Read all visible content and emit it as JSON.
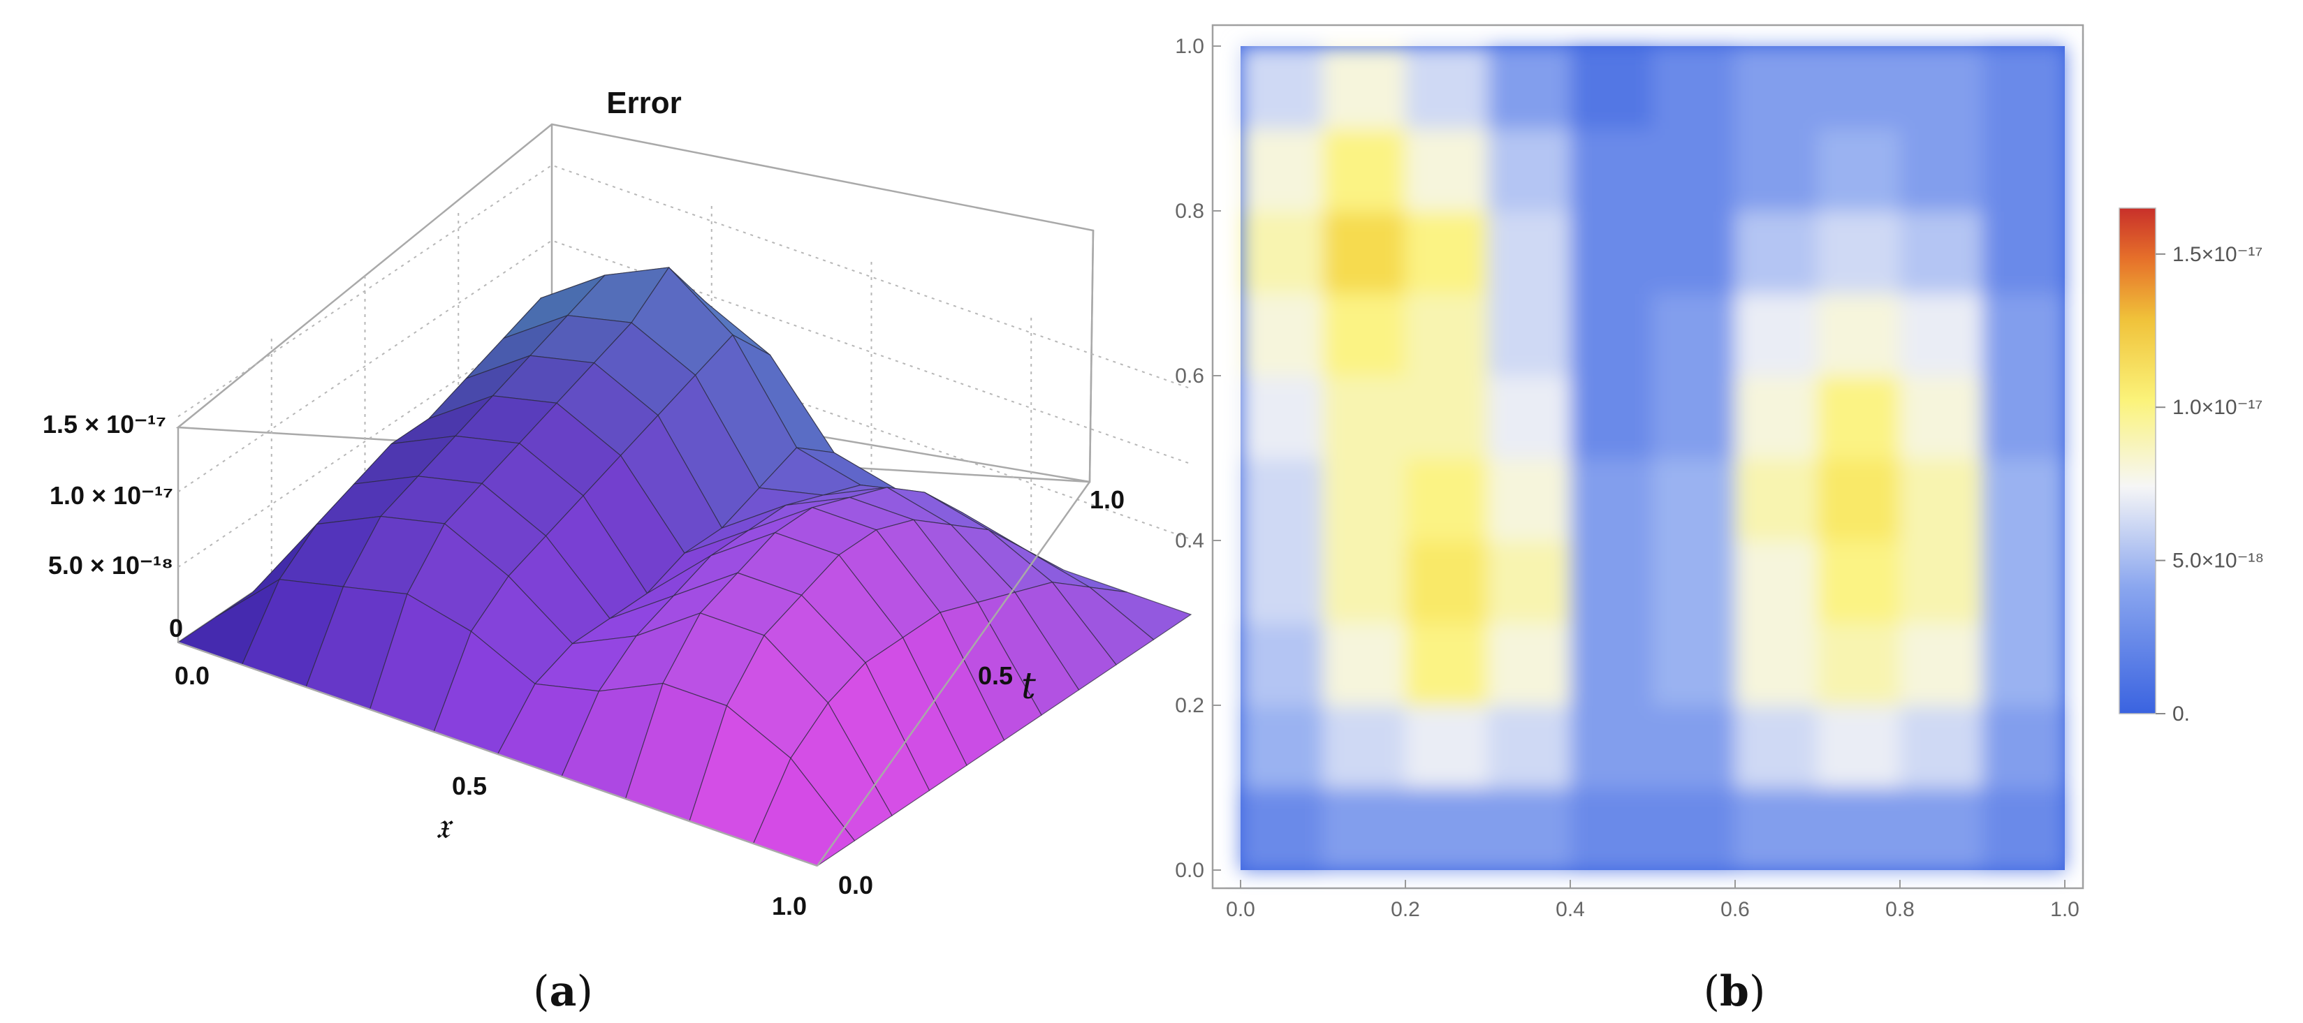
{
  "figure": {
    "label_a": "(a)",
    "label_b": "(b)"
  },
  "chart_data": [
    {
      "type": "surface3d",
      "title": "Error",
      "xlabel": "𝔵",
      "ylabel": "t",
      "zlabel": "",
      "x_ticks": [
        "0.0",
        "0.5",
        "1.0"
      ],
      "t_ticks": [
        "0.0",
        "0.5",
        "1.0"
      ],
      "z_ticks": [
        "0",
        "5.0 × 10⁻¹⁸",
        "1.0 × 10⁻¹⁷",
        "1.5 × 10⁻¹⁷"
      ],
      "xlim": [
        0,
        1
      ],
      "tlim": [
        0,
        1
      ],
      "zlim": [
        0,
        1.6e-17
      ],
      "colors": {
        "low": "#1f2aa8",
        "mid": "#7b2fd0",
        "high": "#e24be8",
        "top": "#3fd5d0"
      },
      "x": [
        0,
        0.1,
        0.2,
        0.3,
        0.4,
        0.5,
        0.6,
        0.7,
        0.8,
        0.9,
        1.0
      ],
      "t": [
        0,
        0.1,
        0.2,
        0.3,
        0.4,
        0.5,
        0.6,
        0.7,
        0.8,
        0.9,
        1.0
      ],
      "z": [
        [
          0,
          0,
          0,
          0,
          0,
          0,
          0,
          0,
          0,
          0,
          0
        ],
        [
          0,
          4e-18,
          5e-18,
          6e-18,
          5e-18,
          3e-18,
          4e-18,
          6e-18,
          6e-18,
          4e-18,
          0
        ],
        [
          0,
          6e-18,
          8e-18,
          9e-18,
          7e-18,
          4e-18,
          6e-18,
          9e-18,
          9e-18,
          6e-18,
          0
        ],
        [
          0,
          7e-18,
          9e-18,
          1e-17,
          8e-18,
          4e-18,
          7e-18,
          1e-17,
          1e-17,
          7e-18,
          0
        ],
        [
          0,
          8e-18,
          1e-17,
          1.1e-17,
          9e-18,
          4e-18,
          8e-18,
          1.1e-17,
          1.1e-17,
          7e-18,
          0
        ],
        [
          0,
          8e-18,
          1.1e-17,
          1.2e-17,
          1e-17,
          5e-18,
          8e-18,
          1.1e-17,
          1.1e-17,
          7e-18,
          0
        ],
        [
          0,
          9e-18,
          1.2e-17,
          1.3e-17,
          1.1e-17,
          5e-18,
          8e-18,
          1e-17,
          1e-17,
          6e-18,
          0
        ],
        [
          0,
          1e-17,
          1.3e-17,
          1.4e-17,
          1.2e-17,
          6e-18,
          7e-18,
          9e-18,
          8e-18,
          5e-18,
          0
        ],
        [
          0,
          1.1e-17,
          1.4e-17,
          1.6e-17,
          1.3e-17,
          7e-18,
          6e-18,
          7e-18,
          6e-18,
          4e-18,
          0
        ],
        [
          0,
          8e-18,
          1.1e-17,
          1.2e-17,
          1e-17,
          5e-18,
          4e-18,
          4e-18,
          3e-18,
          2e-18,
          0
        ],
        [
          0,
          0,
          0,
          0,
          0,
          0,
          0,
          0,
          0,
          0,
          0
        ]
      ]
    },
    {
      "type": "heatmap",
      "title": "",
      "xlabel": "",
      "ylabel": "",
      "x_ticks": [
        "0.0",
        "0.2",
        "0.4",
        "0.6",
        "0.8",
        "1.0"
      ],
      "y_ticks": [
        "0.0",
        "0.2",
        "0.4",
        "0.6",
        "0.8",
        "1.0"
      ],
      "xlim": [
        0,
        1
      ],
      "ylim": [
        0,
        1
      ],
      "colorbar": {
        "ticks": [
          "0.",
          "5.0×10⁻¹⁸",
          "1.0×10⁻¹⁷",
          "1.5×10⁻¹⁷"
        ],
        "range": [
          0,
          1.65e-17
        ],
        "colors": [
          "#3a63e0",
          "#9db4f2",
          "#f5f5f5",
          "#fbf37a",
          "#f3cf3c",
          "#e8762a",
          "#c8302a"
        ]
      },
      "x": [
        0.05,
        0.15,
        0.25,
        0.35,
        0.45,
        0.55,
        0.65,
        0.75,
        0.85,
        0.95
      ],
      "y": [
        0.05,
        0.15,
        0.25,
        0.35,
        0.45,
        0.55,
        0.65,
        0.75,
        0.85,
        0.95
      ],
      "z": [
        [
          2e-18,
          3e-18,
          3e-18,
          3e-18,
          2e-18,
          2e-18,
          3e-18,
          3e-18,
          3e-18,
          2e-18
        ],
        [
          4e-18,
          6e-18,
          7e-18,
          6e-18,
          3e-18,
          3e-18,
          6e-18,
          7e-18,
          6e-18,
          3e-18
        ],
        [
          5e-18,
          8e-18,
          1e-17,
          8e-18,
          3e-18,
          4e-18,
          8e-18,
          9e-18,
          8e-18,
          4e-18
        ],
        [
          6e-18,
          9e-18,
          1.1e-17,
          9e-18,
          3e-18,
          4e-18,
          8e-18,
          1e-17,
          9e-18,
          4e-18
        ],
        [
          6e-18,
          9e-18,
          1e-17,
          8e-18,
          3e-18,
          4e-18,
          9e-18,
          1.1e-17,
          9e-18,
          4e-18
        ],
        [
          7e-18,
          9e-18,
          9e-18,
          7e-18,
          2e-18,
          3e-18,
          8e-18,
          1e-17,
          8e-18,
          3e-18
        ],
        [
          8e-18,
          1e-17,
          9e-18,
          6e-18,
          2e-18,
          3e-18,
          7e-18,
          8e-18,
          7e-18,
          3e-18
        ],
        [
          9e-18,
          1.2e-17,
          1e-17,
          6e-18,
          2e-18,
          2e-18,
          5e-18,
          6e-18,
          5e-18,
          2e-18
        ],
        [
          8e-18,
          1e-17,
          8e-18,
          5e-18,
          2e-18,
          2e-18,
          3e-18,
          4e-18,
          3e-18,
          2e-18
        ],
        [
          6e-18,
          8e-18,
          6e-18,
          3e-18,
          1e-18,
          2e-18,
          3e-18,
          3e-18,
          3e-18,
          2e-18
        ]
      ]
    }
  ]
}
